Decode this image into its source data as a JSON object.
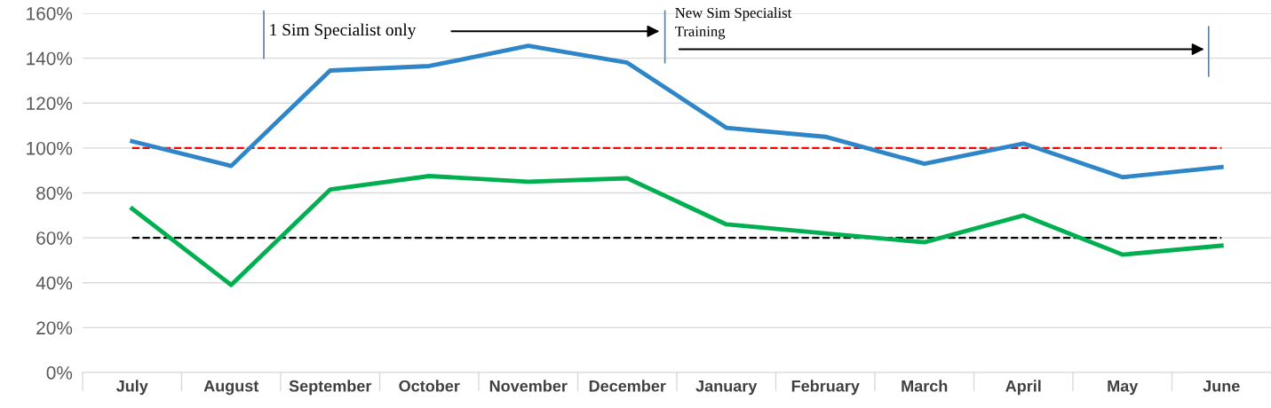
{
  "chart_data": {
    "type": "line",
    "categories": [
      "July",
      "August",
      "September",
      "October",
      "November",
      "December",
      "January",
      "February",
      "March",
      "April",
      "May",
      "June"
    ],
    "series": [
      {
        "color": "#2e86c8",
        "values": [
          103,
          92,
          134.5,
          136.5,
          145.5,
          138,
          109,
          105,
          93,
          102,
          87,
          91.5
        ]
      },
      {
        "color": "#00b050",
        "values": [
          73,
          39,
          81.5,
          87.5,
          85,
          86.5,
          66,
          62,
          58,
          70,
          52.5,
          56.5
        ]
      }
    ],
    "ylim": [
      0,
      160
    ],
    "yticks": [
      {
        "value": 0,
        "label": "0%"
      },
      {
        "value": 20,
        "label": "20%"
      },
      {
        "value": 40,
        "label": "40%"
      },
      {
        "value": 60,
        "label": "60%"
      },
      {
        "value": 80,
        "label": "80%"
      },
      {
        "value": 100,
        "label": "100%"
      },
      {
        "value": 120,
        "label": "120%"
      },
      {
        "value": 140,
        "label": "140%"
      },
      {
        "value": 160,
        "label": "160%"
      }
    ],
    "ref_lines": [
      {
        "axis": "y",
        "value": 100,
        "color": "#ff0000",
        "line_style": "dashed"
      },
      {
        "axis": "y",
        "value": 60,
        "color": "#000000",
        "line_style": "dashed"
      }
    ],
    "annotations": [
      "1 Sim Specialist only",
      "New Sim Specialist\nTraining"
    ],
    "grid": "y",
    "marker": "none",
    "line_style": "solid"
  }
}
